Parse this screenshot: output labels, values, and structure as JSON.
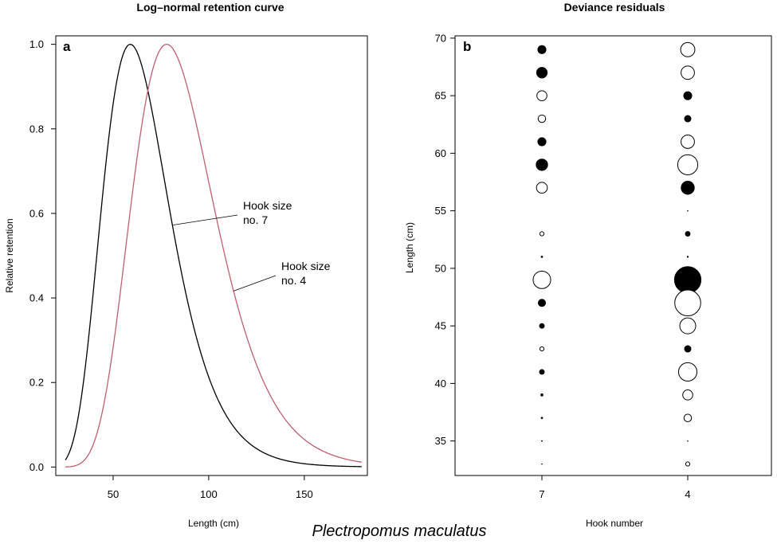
{
  "species_caption": "Plectropomus maculatus",
  "chart_data": [
    {
      "type": "line",
      "panel_label": "a",
      "title": "Log–normal retention curve",
      "xlabel": "Length (cm)",
      "ylabel": "Relative retention",
      "xlim": [
        20,
        183
      ],
      "ylim": [
        -0.02,
        1.02
      ],
      "xticks": [
        50,
        100,
        150
      ],
      "yticks": [
        0.0,
        0.2,
        0.4,
        0.6,
        0.8,
        1.0
      ],
      "ytick_labels": [
        "0.0",
        "0.2",
        "0.4",
        "0.6",
        "0.8",
        "1.0"
      ],
      "series": [
        {
          "name": "Hook size no. 7",
          "mode": 59,
          "sigma": 0.3,
          "x_range": [
            25,
            180
          ],
          "color": "#000000"
        },
        {
          "name": "Hook size no. 4",
          "mode": 78,
          "sigma": 0.28,
          "x_range": [
            25,
            180
          ],
          "color": "#c0606e"
        }
      ],
      "annotations": [
        {
          "lines": [
            "Hook size",
            "no. 7"
          ],
          "target_series": 0,
          "target_x": 81
        },
        {
          "lines": [
            "Hook size",
            "no. 4"
          ],
          "target_series": 1,
          "target_x": 113
        }
      ]
    },
    {
      "type": "scatter",
      "panel_label": "b",
      "title": "Deviance residuals",
      "xlabel": "Hook number",
      "ylabel": "Length (cm)",
      "categories": [
        "7",
        "4"
      ],
      "ylim": [
        32,
        70.2
      ],
      "yticks": [
        35,
        40,
        45,
        50,
        55,
        60,
        65,
        70
      ],
      "size_legend": "marker radius proportional to |residual|; filled = negative, open = positive",
      "points": [
        {
          "cat": "7",
          "y": 69,
          "r": 0.5,
          "filled": true
        },
        {
          "cat": "7",
          "y": 67,
          "r": 0.65,
          "filled": true
        },
        {
          "cat": "7",
          "y": 65,
          "r": 0.6,
          "filled": false
        },
        {
          "cat": "7",
          "y": 63,
          "r": 0.45,
          "filled": false
        },
        {
          "cat": "7",
          "y": 61,
          "r": 0.5,
          "filled": true
        },
        {
          "cat": "7",
          "y": 59,
          "r": 0.7,
          "filled": true
        },
        {
          "cat": "7",
          "y": 57,
          "r": 0.65,
          "filled": false
        },
        {
          "cat": "7",
          "y": 53,
          "r": 0.25,
          "filled": false
        },
        {
          "cat": "7",
          "y": 51,
          "r": 0.1,
          "filled": true
        },
        {
          "cat": "7",
          "y": 49,
          "r": 1.05,
          "filled": false
        },
        {
          "cat": "7",
          "y": 47,
          "r": 0.45,
          "filled": true
        },
        {
          "cat": "7",
          "y": 45,
          "r": 0.3,
          "filled": true
        },
        {
          "cat": "7",
          "y": 43,
          "r": 0.25,
          "filled": false
        },
        {
          "cat": "7",
          "y": 41,
          "r": 0.3,
          "filled": true
        },
        {
          "cat": "7",
          "y": 39,
          "r": 0.15,
          "filled": true
        },
        {
          "cat": "7",
          "y": 37,
          "r": 0.1,
          "filled": true
        },
        {
          "cat": "7",
          "y": 35,
          "r": 0.06,
          "filled": true
        },
        {
          "cat": "7",
          "y": 33,
          "r": 0.05,
          "filled": true
        },
        {
          "cat": "4",
          "y": 69,
          "r": 0.85,
          "filled": false
        },
        {
          "cat": "4",
          "y": 67,
          "r": 0.8,
          "filled": false
        },
        {
          "cat": "4",
          "y": 65,
          "r": 0.5,
          "filled": true
        },
        {
          "cat": "4",
          "y": 63,
          "r": 0.4,
          "filled": true
        },
        {
          "cat": "4",
          "y": 61,
          "r": 0.8,
          "filled": false
        },
        {
          "cat": "4",
          "y": 59,
          "r": 1.2,
          "filled": false
        },
        {
          "cat": "4",
          "y": 57,
          "r": 0.8,
          "filled": true
        },
        {
          "cat": "4",
          "y": 55,
          "r": 0.05,
          "filled": true
        },
        {
          "cat": "4",
          "y": 53,
          "r": 0.3,
          "filled": true
        },
        {
          "cat": "4",
          "y": 51,
          "r": 0.08,
          "filled": true
        },
        {
          "cat": "4",
          "y": 49,
          "r": 1.6,
          "filled": true
        },
        {
          "cat": "4",
          "y": 47,
          "r": 1.55,
          "filled": false
        },
        {
          "cat": "4",
          "y": 45,
          "r": 0.95,
          "filled": false
        },
        {
          "cat": "4",
          "y": 43,
          "r": 0.4,
          "filled": true
        },
        {
          "cat": "4",
          "y": 41,
          "r": 1.1,
          "filled": false
        },
        {
          "cat": "4",
          "y": 39,
          "r": 0.6,
          "filled": false
        },
        {
          "cat": "4",
          "y": 37,
          "r": 0.45,
          "filled": false
        },
        {
          "cat": "4",
          "y": 35,
          "r": 0.05,
          "filled": true
        },
        {
          "cat": "4",
          "y": 33,
          "r": 0.25,
          "filled": false
        }
      ]
    }
  ]
}
